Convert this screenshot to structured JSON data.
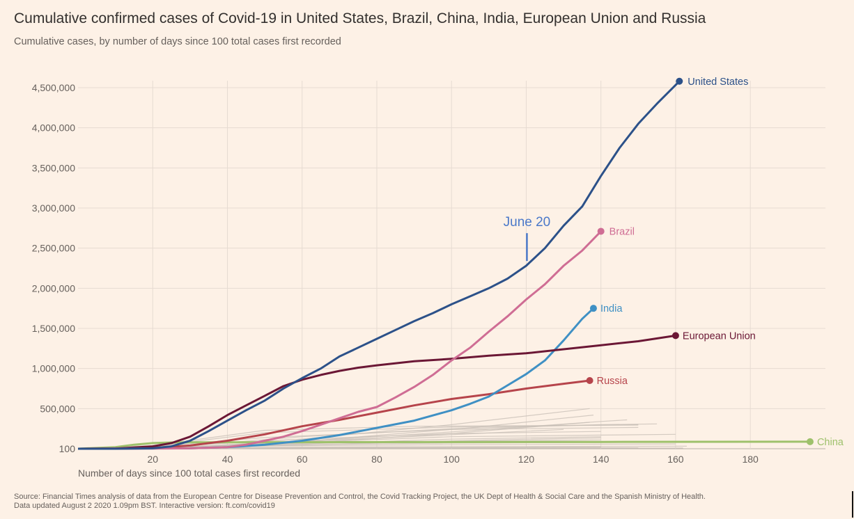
{
  "title": "Cumulative confirmed cases of Covid-19 in United States, Brazil, China, India, European Union and Russia",
  "subtitle": "Cumulative cases, by number of days since 100 total cases first recorded",
  "footer": {
    "source": "Source: Financial Times analysis of data from the European Centre for Disease Prevention and Control, the Covid Tracking Project, the UK Dept of Health & Social Care and the Spanish Ministry of Health.",
    "updated": "Data updated August 2 2020 1.09pm BST. Interactive version: ft.com/covid19"
  },
  "chart_data": {
    "type": "line",
    "title": "Cumulative confirmed cases of Covid-19 in United States, Brazil, China, India, European Union and Russia",
    "subtitle": "Cumulative cases, by number of days since 100 total cases first recorded",
    "xlabel": "Number of days since 100 total cases first recorded",
    "ylabel": "",
    "xlim": [
      0,
      200
    ],
    "ylim": [
      100,
      4500000
    ],
    "xticks": [
      20,
      40,
      60,
      80,
      100,
      120,
      140,
      160,
      180
    ],
    "xtick_labels": [
      "20",
      "40",
      "60",
      "80",
      "100",
      "120",
      "140",
      "160",
      "180"
    ],
    "yticks": [
      100,
      500000,
      1000000,
      1500000,
      2000000,
      2500000,
      3000000,
      3500000,
      4000000,
      4500000
    ],
    "ytick_labels": [
      "100",
      "500,000",
      "1,000,000",
      "1,500,000",
      "2,000,000",
      "2,500,000",
      "3,000,000",
      "3,500,000",
      "4,000,000",
      "4,500,000"
    ],
    "grid": true,
    "legend": "direct labels at line ends",
    "annotations": [
      {
        "text": "June 20",
        "x": 120,
        "y": 2340000,
        "color": "#4a78c9"
      }
    ],
    "series": [
      {
        "name": "United States",
        "color": "#2c5189",
        "end_marker": true,
        "x": [
          0,
          10,
          20,
          25,
          30,
          35,
          40,
          45,
          50,
          55,
          60,
          65,
          70,
          75,
          80,
          85,
          90,
          95,
          100,
          105,
          110,
          115,
          120,
          125,
          130,
          135,
          140,
          145,
          150,
          155,
          161
        ],
        "y": [
          100,
          400,
          5000,
          30000,
          100000,
          220000,
          350000,
          480000,
          600000,
          750000,
          880000,
          1000000,
          1150000,
          1260000,
          1370000,
          1480000,
          1590000,
          1690000,
          1800000,
          1900000,
          2000000,
          2120000,
          2280000,
          2500000,
          2780000,
          3020000,
          3400000,
          3750000,
          4050000,
          4300000,
          4580000
        ]
      },
      {
        "name": "Brazil",
        "color": "#cf6d94",
        "end_marker": true,
        "x": [
          0,
          30,
          40,
          45,
          50,
          55,
          60,
          65,
          70,
          75,
          80,
          85,
          90,
          95,
          100,
          105,
          110,
          115,
          120,
          125,
          130,
          135,
          140
        ],
        "y": [
          100,
          5000,
          20000,
          50000,
          100000,
          150000,
          220000,
          300000,
          380000,
          460000,
          520000,
          640000,
          770000,
          920000,
          1100000,
          1260000,
          1460000,
          1650000,
          1860000,
          2050000,
          2280000,
          2470000,
          2710000
        ]
      },
      {
        "name": "India",
        "color": "#3f90c4",
        "end_marker": true,
        "x": [
          0,
          30,
          40,
          50,
          60,
          70,
          80,
          90,
          100,
          105,
          110,
          115,
          120,
          125,
          130,
          135,
          138
        ],
        "y": [
          100,
          5000,
          20000,
          50000,
          100000,
          170000,
          260000,
          350000,
          480000,
          560000,
          650000,
          790000,
          930000,
          1100000,
          1350000,
          1620000,
          1750000
        ]
      },
      {
        "name": "European Union",
        "color": "#6b1735",
        "end_marker": true,
        "x": [
          0,
          10,
          20,
          25,
          30,
          35,
          40,
          45,
          50,
          55,
          60,
          65,
          70,
          75,
          80,
          90,
          100,
          110,
          120,
          130,
          140,
          150,
          160
        ],
        "y": [
          100,
          3000,
          30000,
          70000,
          150000,
          280000,
          420000,
          540000,
          660000,
          780000,
          860000,
          920000,
          970000,
          1010000,
          1040000,
          1090000,
          1120000,
          1160000,
          1190000,
          1240000,
          1290000,
          1340000,
          1410000
        ]
      },
      {
        "name": "Russia",
        "color": "#b6444b",
        "end_marker": true,
        "x": [
          0,
          20,
          30,
          40,
          50,
          60,
          70,
          80,
          90,
          100,
          110,
          120,
          130,
          137
        ],
        "y": [
          100,
          10000,
          40000,
          100000,
          180000,
          280000,
          360000,
          450000,
          540000,
          620000,
          680000,
          750000,
          810000,
          850000
        ]
      },
      {
        "name": "China",
        "color": "#9ec16b",
        "end_marker": true,
        "x": [
          0,
          10,
          15,
          20,
          25,
          30,
          40,
          60,
          100,
          140,
          196
        ],
        "y": [
          100,
          20000,
          50000,
          70000,
          78000,
          80000,
          81000,
          82000,
          83000,
          85000,
          88000
        ]
      }
    ],
    "background_series_color": "#c9c0b8",
    "background_series": [
      {
        "x": [
          0,
          20,
          60,
          100,
          137
        ],
        "y": [
          100,
          20000,
          120000,
          300000,
          500000
        ]
      },
      {
        "x": [
          0,
          25,
          65,
          105,
          138
        ],
        "y": [
          100,
          15000,
          110000,
          260000,
          420000
        ]
      },
      {
        "x": [
          0,
          25,
          60,
          100,
          140,
          155
        ],
        "y": [
          100,
          20000,
          150000,
          250000,
          300000,
          310000
        ]
      },
      {
        "x": [
          0,
          20,
          50,
          100,
          140,
          150
        ],
        "y": [
          100,
          30000,
          200000,
          270000,
          295000,
          300000
        ]
      },
      {
        "x": [
          0,
          25,
          60,
          100,
          140,
          147
        ],
        "y": [
          100,
          10000,
          90000,
          210000,
          340000,
          360000
        ]
      },
      {
        "x": [
          0,
          20,
          50,
          90,
          130,
          150
        ],
        "y": [
          100,
          40000,
          230000,
          280000,
          290000,
          295000
        ]
      },
      {
        "x": [
          0,
          25,
          60,
          100,
          137
        ],
        "y": [
          100,
          12000,
          70000,
          190000,
          330000
        ]
      },
      {
        "x": [
          0,
          20,
          50,
          100,
          150
        ],
        "y": [
          100,
          25000,
          140000,
          240000,
          265000
        ]
      },
      {
        "x": [
          0,
          25,
          60,
          100,
          130
        ],
        "y": [
          100,
          15000,
          90000,
          175000,
          240000
        ]
      },
      {
        "x": [
          0,
          20,
          60,
          100,
          140
        ],
        "y": [
          100,
          20000,
          120000,
          190000,
          215000
        ]
      },
      {
        "x": [
          0,
          25,
          60,
          100,
          140,
          160
        ],
        "y": [
          100,
          10000,
          80000,
          150000,
          170000,
          180000
        ]
      },
      {
        "x": [
          0,
          25,
          60,
          100,
          140
        ],
        "y": [
          100,
          8000,
          60000,
          120000,
          150000
        ]
      },
      {
        "x": [
          0,
          30,
          70,
          110,
          140
        ],
        "y": [
          100,
          10000,
          60000,
          110000,
          135000
        ]
      },
      {
        "x": [
          0,
          20,
          60,
          100,
          140
        ],
        "y": [
          100,
          15000,
          70000,
          95000,
          110000
        ]
      },
      {
        "x": [
          0,
          25,
          60,
          100,
          150
        ],
        "y": [
          100,
          12000,
          50000,
          70000,
          80000
        ]
      },
      {
        "x": [
          0,
          20,
          50,
          100,
          160
        ],
        "y": [
          100,
          10000,
          35000,
          50000,
          60000
        ]
      },
      {
        "x": [
          0,
          20,
          60,
          120,
          163
        ],
        "y": [
          100,
          6000,
          20000,
          28000,
          32000
        ]
      },
      {
        "x": [
          0,
          25,
          70,
          140
        ],
        "y": [
          100,
          5000,
          15000,
          20000
        ]
      },
      {
        "x": [
          0,
          30,
          80,
          150
        ],
        "y": [
          100,
          4000,
          10000,
          12000
        ]
      },
      {
        "x": [
          0,
          20,
          60,
          120,
          162
        ],
        "y": [
          100,
          3000,
          6000,
          8000,
          9000
        ]
      }
    ]
  }
}
